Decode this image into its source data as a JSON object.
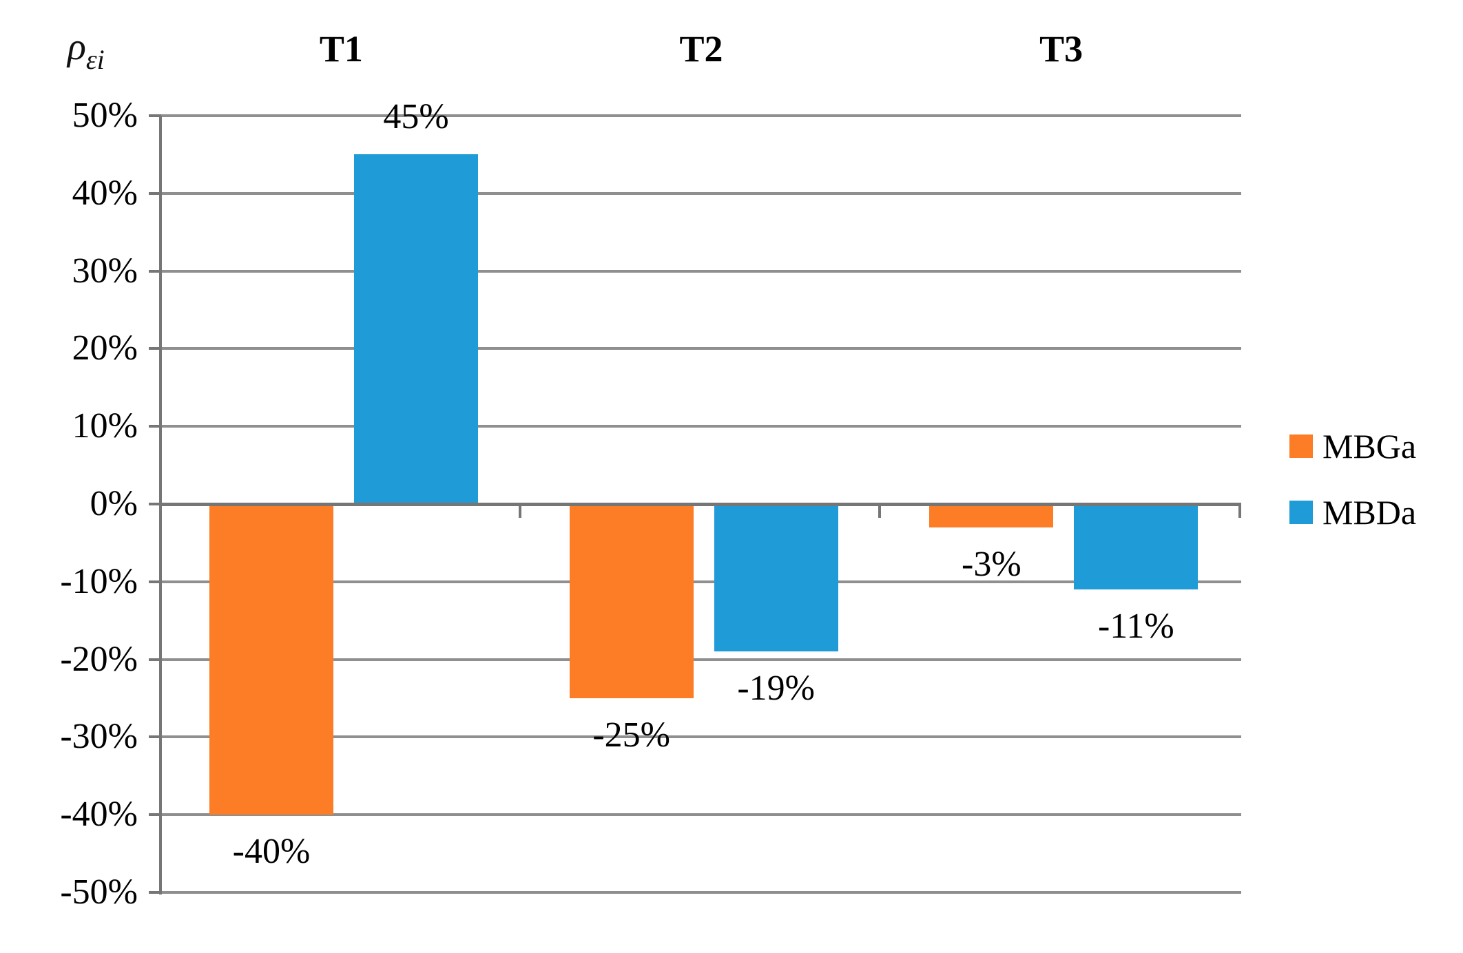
{
  "chart_data": {
    "type": "bar",
    "title": "",
    "y_axis_title": {
      "base": "ρ",
      "subscript": "εi"
    },
    "categories": [
      "T1",
      "T2",
      "T3"
    ],
    "series": [
      {
        "name": "MBGa",
        "color": "#FC7D26",
        "values": [
          -40,
          -25,
          -3
        ],
        "data_labels": [
          "-40%",
          "-25%",
          "-3%"
        ]
      },
      {
        "name": "MBDa",
        "color": "#1F9BD7",
        "values": [
          45,
          -19,
          -11
        ],
        "data_labels": [
          "45%",
          "-19%",
          "-11%"
        ]
      }
    ],
    "y_ticks": [
      {
        "value": 50,
        "label": "50%"
      },
      {
        "value": 40,
        "label": "40%"
      },
      {
        "value": 30,
        "label": "30%"
      },
      {
        "value": 20,
        "label": "20%"
      },
      {
        "value": 10,
        "label": "10%"
      },
      {
        "value": 0,
        "label": "0%"
      },
      {
        "value": -10,
        "label": "-10%"
      },
      {
        "value": -20,
        "label": "-20%"
      },
      {
        "value": -30,
        "label": "-30%"
      },
      {
        "value": -40,
        "label": "-40%"
      },
      {
        "value": -50,
        "label": "-50%"
      }
    ],
    "ylim": [
      -50,
      50
    ],
    "grid": true,
    "legend_position": "right",
    "colors": {
      "gridline": "#8F8F8F",
      "axis": "#767676",
      "text": "#000000",
      "background": "#FFFFFF"
    }
  }
}
